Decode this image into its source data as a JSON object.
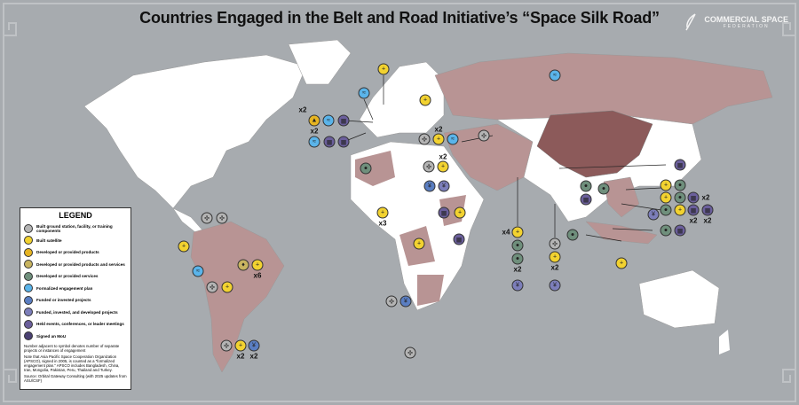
{
  "title": "Countries Engaged in the Belt and Road Initiative’s “Space Silk Road”",
  "logo": {
    "name": "COMMERCIAL SPACE",
    "sub": "FEDERATION"
  },
  "colors": {
    "ocean": "#a7abaf",
    "land": "#ffffff",
    "bri_country": "#b89494",
    "china": "#8c5a5a"
  },
  "legend": {
    "title": "LEGEND",
    "items": [
      {
        "type": "ground",
        "label": "Built ground station, facility, or training components",
        "color": "#b4b4b4",
        "glyph": "✣"
      },
      {
        "type": "satellite",
        "label": "Built satellite",
        "color": "#f2d230",
        "glyph": "+"
      },
      {
        "type": "products",
        "label": "Developed or provided products",
        "color": "#e6b422",
        "glyph": "▲"
      },
      {
        "type": "products_services",
        "label": "Developed or provided products and services",
        "color": "#c8b460",
        "glyph": "♦"
      },
      {
        "type": "services",
        "label": "Developed or provided services",
        "color": "#6f8f7c",
        "glyph": "●"
      },
      {
        "type": "plan",
        "label": "Formalized engagement plan",
        "color": "#5ab4ea",
        "glyph": "≈"
      },
      {
        "type": "funded",
        "label": "Funded or invested projects",
        "color": "#5a7ec2",
        "glyph": "¥"
      },
      {
        "type": "funded_dev",
        "label": "Funded, invested, and developed projects",
        "color": "#7c7eba",
        "glyph": "¥"
      },
      {
        "type": "events",
        "label": "Held events, conferences, or leader meetings",
        "color": "#6b5f9c",
        "glyph": "▦"
      },
      {
        "type": "mou",
        "label": "Signed an MoU",
        "color": "#4a4072",
        "glyph": "▤"
      }
    ],
    "notes": [
      "Number adjacent to symbol denotes number of separate projects or instances of engagement",
      "Note that Asia Pacific Space Cooperation Organization (APSCO), signed in 2005, is counted as a “formalized engagement plan.” APSCO includes Bangladesh, China, Iran, Mongolia, Pakistan, Peru, Thailand and Turkey.",
      "Source: Orbital Gateway Consulting (with 2025 updates from ASU/CSF)"
    ]
  },
  "markers": [
    {
      "type": "satellite"
    },
    {
      "type": "satellite"
    },
    {
      "type": "plan"
    },
    {
      "type": "plan"
    },
    {
      "type": "products",
      "mult": "x2"
    },
    {
      "type": "plan"
    },
    {
      "type": "events"
    },
    {
      "type": "plan"
    },
    {
      "type": "events"
    },
    {
      "type": "events"
    },
    {
      "type": "ground"
    },
    {
      "type": "satellite",
      "mult": "x2"
    },
    {
      "type": "plan"
    },
    {
      "type": "ground"
    },
    {
      "type": "ground"
    },
    {
      "type": "satellite",
      "mult": "x2"
    },
    {
      "type": "funded"
    },
    {
      "type": "funded_dev"
    },
    {
      "type": "services"
    },
    {
      "type": "satellite",
      "mult": "x3"
    },
    {
      "type": "satellite"
    },
    {
      "type": "events"
    },
    {
      "type": "satellite"
    },
    {
      "type": "ground"
    },
    {
      "type": "funded"
    },
    {
      "type": "ground"
    },
    {
      "type": "satellite",
      "mult": "x4"
    },
    {
      "type": "services"
    },
    {
      "type": "services",
      "mult": "x2"
    },
    {
      "type": "funded_dev"
    },
    {
      "type": "ground"
    },
    {
      "type": "satellite",
      "mult": "x2"
    },
    {
      "type": "funded_dev"
    },
    {
      "type": "ground"
    },
    {
      "type": "ground"
    },
    {
      "type": "satellite"
    },
    {
      "type": "plan"
    },
    {
      "type": "products_services"
    },
    {
      "type": "satellite",
      "mult": "x6"
    },
    {
      "type": "ground"
    },
    {
      "type": "satellite"
    },
    {
      "type": "ground"
    },
    {
      "type": "satellite",
      "mult": "x2"
    },
    {
      "type": "funded",
      "mult": "x2"
    },
    {
      "type": "events"
    },
    {
      "type": "satellite"
    },
    {
      "type": "services"
    },
    {
      "type": "satellite"
    },
    {
      "type": "services"
    },
    {
      "type": "events",
      "mult": "x2"
    },
    {
      "type": "services"
    },
    {
      "type": "satellite"
    },
    {
      "type": "events",
      "mult": "x2"
    },
    {
      "type": "events",
      "mult": "x2"
    },
    {
      "type": "funded_dev"
    },
    {
      "type": "services"
    },
    {
      "type": "events"
    },
    {
      "type": "services"
    },
    {
      "type": "events"
    },
    {
      "type": "services"
    },
    {
      "type": "satellite"
    },
    {
      "type": "services"
    },
    {
      "type": "events"
    }
  ],
  "extra_labels": [
    "x2"
  ]
}
